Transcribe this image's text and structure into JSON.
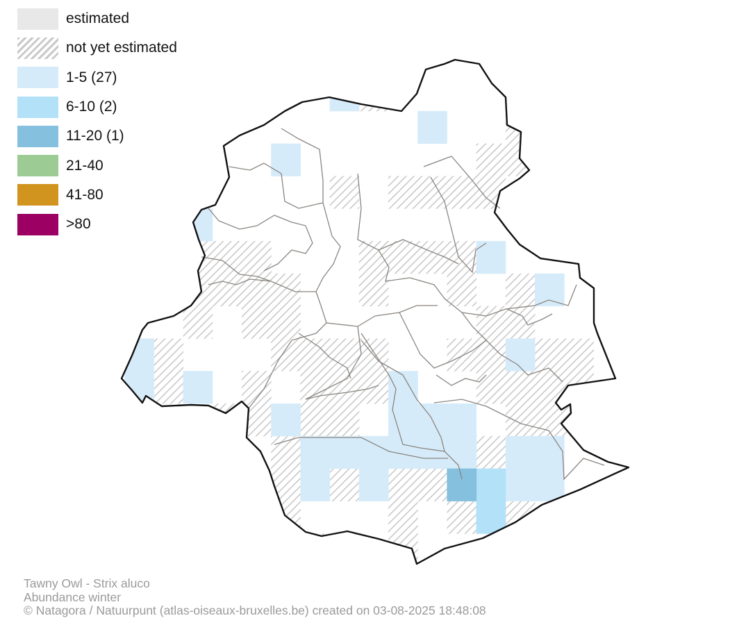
{
  "legend": {
    "items": [
      {
        "label": "estimated",
        "color": "#e8e8e8",
        "pattern": "solid"
      },
      {
        "label": "not yet estimated",
        "color": "#c9c9c9",
        "pattern": "hatched"
      },
      {
        "label": "1-5 (27)",
        "color": "#d6ebf9",
        "pattern": "solid"
      },
      {
        "label": "6-10 (2)",
        "color": "#b3e2f8",
        "pattern": "solid"
      },
      {
        "label": "11-20 (1)",
        "color": "#85c0de",
        "pattern": "solid"
      },
      {
        "label": "21-40",
        "color": "#9ccb94",
        "pattern": "solid"
      },
      {
        "label": "41-80",
        "color": "#d1941f",
        "pattern": "solid"
      },
      {
        "label": ">80",
        "color": "#9c0063",
        "pattern": "solid"
      }
    ]
  },
  "footer": {
    "species": "Tawny Owl - Strix aluco",
    "season": "Abundance winter",
    "credit": "© Natagora / Natuurpunt (atlas-oiseaux-bruxelles.be) created on 03-08-2025 18:48:08"
  },
  "colors": {
    "outline": "#111111",
    "municipality_border": "#8a8580",
    "hatch": "#c9c9c9"
  }
}
